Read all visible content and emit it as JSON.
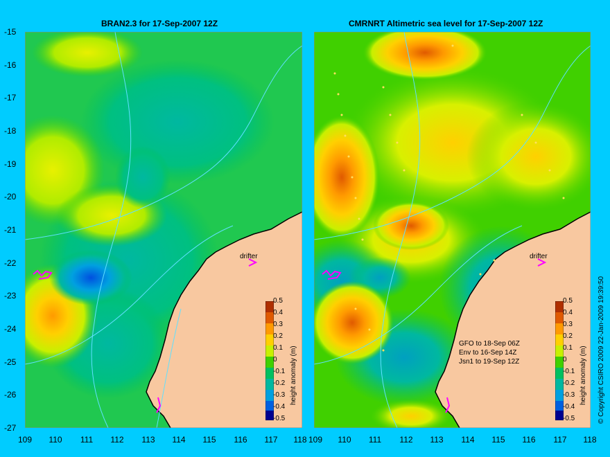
{
  "left_panel": {
    "title": "BRAN2.3 for 17-Sep-2007 12Z"
  },
  "right_panel": {
    "title": "CMRNRT Altimetric sea level  for 17-Sep-2007 12Z"
  },
  "y_axis": {
    "ticks": [
      "-15",
      "-16",
      "-17",
      "-18",
      "-19",
      "-20",
      "-21",
      "-22",
      "-23",
      "-24",
      "-25",
      "-26",
      "-27"
    ]
  },
  "x_axis": {
    "ticks": [
      "109",
      "110",
      "111",
      "112",
      "113",
      "114",
      "115",
      "116",
      "117",
      "118"
    ]
  },
  "colorbar": {
    "label": "height anomaly (m)",
    "ticks": [
      "0.5",
      "0.4",
      "0.3",
      "0.2",
      "0.1",
      "0",
      "-0.1",
      "-0.2",
      "-0.3",
      "-0.4",
      "-0.5"
    ],
    "colors": [
      "#b03000",
      "#e05a00",
      "#ff9a00",
      "#ffd000",
      "#c8f000",
      "#40d000",
      "#00c060",
      "#00b8a0",
      "#00a0e0",
      "#0060e0",
      "#000090"
    ]
  },
  "drifter_label": "drifter",
  "satellite_notes": [
    "GFO to 18-Sep 06Z",
    "Env to 16-Sep 14Z",
    "Jsn1 to 19-Sep 12Z"
  ],
  "copyright": "© Copyright CSIRO 2009    22-Jan-2009 19:39:50",
  "colors": {
    "background": "#00ccff",
    "land": "#f8c8a0",
    "drifter_marker": "#ff00ff",
    "contour": "#60e0ff"
  }
}
